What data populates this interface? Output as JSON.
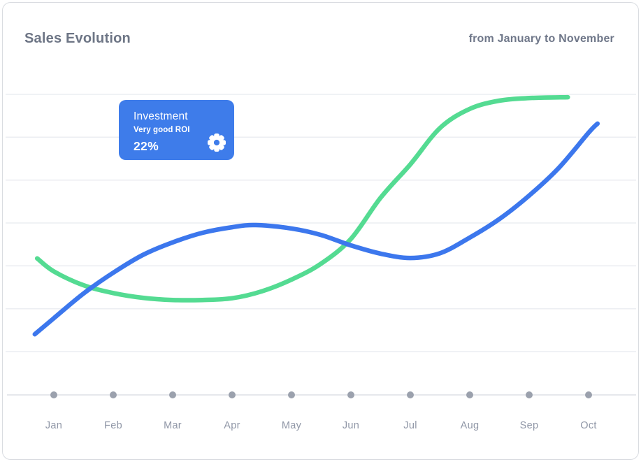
{
  "header": {
    "title": "Sales Evolution",
    "range_label": "from January to November"
  },
  "tooltip": {
    "title": "Investment",
    "subtitle": "Very good ROI",
    "value": "22%",
    "icon": "gear-icon"
  },
  "colors": {
    "card_border": "#d9dce1",
    "title_text": "#6d7585",
    "range_text": "#6f7789",
    "gridline": "#eceef2",
    "axis_line": "#e2e4e9",
    "axis_dot": "#9ba1ad",
    "axis_label_text": "#8f96a6",
    "tooltip_bg": "#3e7cea",
    "series_blue": "#3c77ed",
    "series_green": "#54db92"
  },
  "chart_data": {
    "type": "line",
    "title": "Sales Evolution",
    "subtitle": "from January to November",
    "categories": [
      "Jan",
      "Feb",
      "Mar",
      "Apr",
      "May",
      "Jun",
      "Jul",
      "Aug",
      "Sep",
      "Oct"
    ],
    "grid": true,
    "y_axis_labels": false,
    "ylim": [
      0,
      75
    ],
    "legend": "none",
    "series": [
      {
        "name": "investment",
        "color": "#54db92",
        "values": [
          28.5,
          23.5,
          22,
          22,
          26.5,
          36,
          53,
          66,
          68.5,
          null
        ],
        "curve_points": [
          [
            -0.28,
            31.5
          ],
          [
            0,
            28.5
          ],
          [
            0.5,
            25.3
          ],
          [
            1,
            23.5
          ],
          [
            1.5,
            22.4
          ],
          [
            2,
            21.9
          ],
          [
            2.5,
            21.9
          ],
          [
            3,
            22.3
          ],
          [
            3.5,
            23.9
          ],
          [
            4,
            26.6
          ],
          [
            4.5,
            30.3
          ],
          [
            5,
            36
          ],
          [
            5.5,
            45.5
          ],
          [
            6,
            53.2
          ],
          [
            6.5,
            61.6
          ],
          [
            7,
            66
          ],
          [
            7.5,
            67.9
          ],
          [
            8,
            68.5
          ],
          [
            8.65,
            68.7
          ]
        ]
      },
      {
        "name": "sales",
        "color": "#3c77ed",
        "values": [
          17.5,
          28,
          35,
          39,
          38.5,
          34.5,
          31.5,
          36,
          46,
          60.5
        ],
        "curve_points": [
          [
            -0.32,
            14
          ],
          [
            0,
            17.7
          ],
          [
            0.5,
            23.4
          ],
          [
            1,
            28.2
          ],
          [
            1.5,
            32.3
          ],
          [
            2,
            35.2
          ],
          [
            2.5,
            37.4
          ],
          [
            3,
            38.7
          ],
          [
            3.4,
            39.2
          ],
          [
            4,
            38.4
          ],
          [
            4.5,
            36.9
          ],
          [
            5,
            34.5
          ],
          [
            5.5,
            32.6
          ],
          [
            6,
            31.6
          ],
          [
            6.5,
            32.7
          ],
          [
            7,
            36.3
          ],
          [
            7.5,
            40.6
          ],
          [
            8,
            46
          ],
          [
            8.5,
            52.4
          ],
          [
            9,
            60.5
          ],
          [
            9.15,
            62.6
          ]
        ]
      }
    ],
    "annotation": {
      "label": "Investment",
      "note": "Very good ROI",
      "value": "22%"
    }
  }
}
